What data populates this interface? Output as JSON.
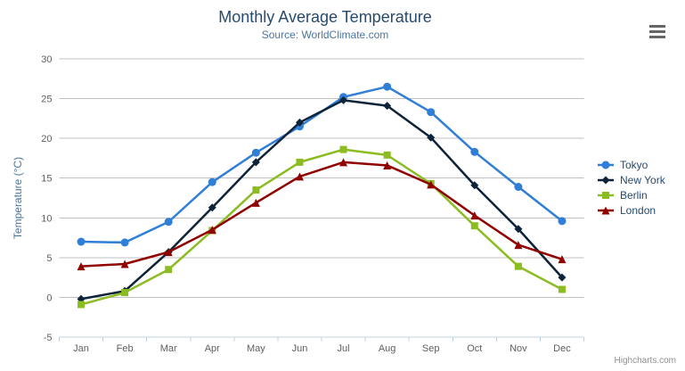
{
  "header": {
    "context_menu_icon": "hamburger-icon"
  },
  "credit": {
    "label": "Highcharts.com"
  },
  "chart_data": {
    "type": "line",
    "title": "Monthly Average Temperature",
    "subtitle": "Source: WorldClimate.com",
    "xlabel": "",
    "ylabel": "Temperature (°C)",
    "categories": [
      "Jan",
      "Feb",
      "Mar",
      "Apr",
      "May",
      "Jun",
      "Jul",
      "Aug",
      "Sep",
      "Oct",
      "Nov",
      "Dec"
    ],
    "ylim": [
      -5,
      30
    ],
    "ytick_step": 5,
    "ytick_labels": [
      "-5",
      "0",
      "5",
      "10",
      "15",
      "20",
      "25",
      "30"
    ],
    "grid": true,
    "legend_position": "right",
    "series": [
      {
        "name": "Tokyo",
        "color": "#2f7ed8",
        "marker": "circle",
        "values": [
          7.0,
          6.9,
          9.5,
          14.5,
          18.2,
          21.5,
          25.2,
          26.5,
          23.3,
          18.3,
          13.9,
          9.6
        ]
      },
      {
        "name": "New York",
        "color": "#0d233a",
        "marker": "diamond",
        "values": [
          -0.2,
          0.8,
          5.7,
          11.3,
          17.0,
          22.0,
          24.8,
          24.1,
          20.1,
          14.1,
          8.6,
          2.5
        ]
      },
      {
        "name": "Berlin",
        "color": "#8bbc21",
        "marker": "square",
        "values": [
          -0.9,
          0.6,
          3.5,
          8.4,
          13.5,
          17.0,
          18.6,
          17.9,
          14.3,
          9.0,
          3.9,
          1.0
        ]
      },
      {
        "name": "London",
        "color": "#910000",
        "marker": "triangle",
        "values": [
          3.9,
          4.2,
          5.7,
          8.5,
          11.9,
          15.2,
          17.0,
          16.6,
          14.2,
          10.3,
          6.6,
          4.8
        ]
      }
    ],
    "colors": {
      "grid_line": "#c0c0c0",
      "axis_line": "#c0d0e0",
      "tick": "#c0d0e0",
      "axis_labels": "#606060",
      "title": "#274b6d",
      "subtitle": "#4d759e",
      "yaxis_title": "#4d759e",
      "legend_text": "#274b6d",
      "credit": "#909090"
    }
  }
}
